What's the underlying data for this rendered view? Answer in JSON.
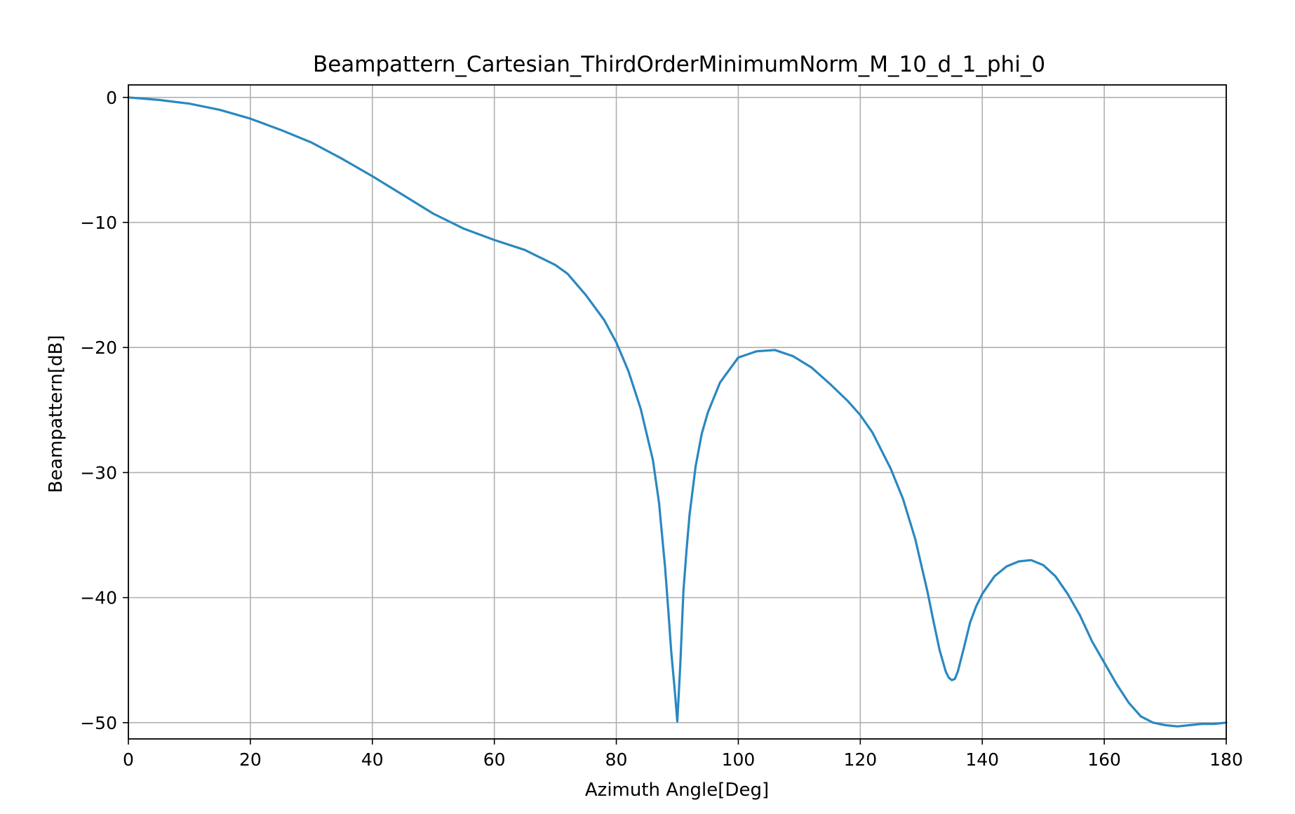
{
  "chart_data": {
    "type": "line",
    "title": "Beampattern_Cartesian_ThirdOrderMinimumNorm_M_10_d_1_phi_0",
    "xlabel": "Azimuth Angle[Deg]",
    "ylabel": "Beampattern[dB]",
    "xlim": [
      0,
      180
    ],
    "ylim": [
      -51.3,
      1.0
    ],
    "xticks": [
      0,
      20,
      40,
      60,
      80,
      100,
      120,
      140,
      160,
      180
    ],
    "xtick_labels": [
      "0",
      "20",
      "40",
      "60",
      "80",
      "100",
      "120",
      "140",
      "160",
      "180"
    ],
    "yticks": [
      0,
      -10,
      -20,
      -30,
      -40,
      -50
    ],
    "ytick_labels": [
      "0",
      "−10",
      "−20",
      "−30",
      "−40",
      "−50"
    ],
    "grid": true,
    "line_color": "#2a88c0",
    "series": [
      {
        "x": [
          0,
          5,
          10,
          15,
          20,
          25,
          30,
          35,
          40,
          45,
          50,
          55,
          60,
          65,
          70,
          72,
          75,
          78,
          80,
          82,
          84,
          86,
          87,
          88,
          88.5,
          89,
          89.5,
          90,
          90.5,
          91,
          91.5,
          92,
          93,
          94,
          95,
          97,
          100,
          103,
          106,
          109,
          112,
          115,
          118,
          120,
          122,
          125,
          127,
          129,
          131,
          132,
          133,
          134,
          134.5,
          135,
          135.5,
          136,
          137,
          138,
          139,
          140,
          142,
          144,
          146,
          148,
          150,
          152,
          154,
          156,
          158,
          160,
          162,
          164,
          166,
          168,
          170,
          172,
          174,
          176,
          178,
          180
        ],
        "y": [
          0,
          -0.2,
          -0.5,
          -1.0,
          -1.7,
          -2.6,
          -3.6,
          -4.9,
          -6.3,
          -7.8,
          -9.3,
          -10.5,
          -11.4,
          -12.2,
          -13.4,
          -14.1,
          -15.8,
          -17.8,
          -19.6,
          -21.9,
          -24.9,
          -29.0,
          -32.4,
          -37.6,
          -40.9,
          -44.3,
          -47.0,
          -49.9,
          -45.3,
          -39.5,
          -36.3,
          -33.4,
          -29.5,
          -26.9,
          -25.2,
          -22.8,
          -20.8,
          -20.3,
          -20.2,
          -20.7,
          -21.6,
          -22.9,
          -24.3,
          -25.4,
          -26.8,
          -29.7,
          -32.1,
          -35.3,
          -39.5,
          -41.9,
          -44.2,
          -45.9,
          -46.4,
          -46.6,
          -46.5,
          -45.9,
          -44.0,
          -42.0,
          -40.7,
          -39.7,
          -38.3,
          -37.5,
          -37.1,
          -37.0,
          -37.4,
          -38.3,
          -39.7,
          -41.4,
          -43.5,
          -45.2,
          -46.9,
          -48.4,
          -49.5,
          -50.0,
          -50.2,
          -50.3,
          -50.2,
          -50.1,
          -50.1,
          -50.0
        ]
      }
    ]
  }
}
